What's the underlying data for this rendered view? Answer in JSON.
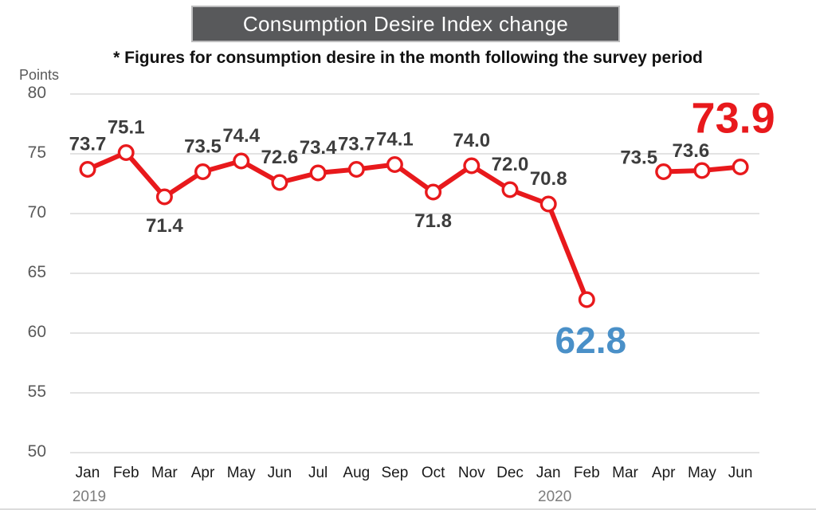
{
  "header": {
    "title": "Consumption Desire Index change",
    "subtitle": "* Figures for consumption desire in the month following the survey period"
  },
  "chart_data": {
    "type": "line",
    "title": "Consumption Desire Index change",
    "xlabel": "",
    "ylabel": "Points",
    "ylim": [
      50,
      80
    ],
    "yticks": [
      80,
      75,
      70,
      65,
      60,
      55,
      50
    ],
    "grid": "horizontal",
    "legend": "none",
    "categories": [
      "Jan",
      "Feb",
      "Mar",
      "Apr",
      "May",
      "Jun",
      "Jul",
      "Aug",
      "Sep",
      "Oct",
      "Nov",
      "Dec",
      "Jan",
      "Feb",
      "Mar",
      "Apr",
      "May",
      "Jun"
    ],
    "year_markers": [
      {
        "category_index": 0,
        "label": "2019"
      },
      {
        "category_index": 12,
        "label": "2020"
      }
    ],
    "series": [
      {
        "name": "Consumption Desire Index",
        "color": "#e8191c",
        "values": [
          73.7,
          75.1,
          71.4,
          73.5,
          74.4,
          72.6,
          73.4,
          73.7,
          74.1,
          71.8,
          74.0,
          72.0,
          70.8,
          62.8,
          null,
          73.5,
          73.6,
          73.9
        ]
      }
    ],
    "point_labels": [
      {
        "index": 0,
        "text": "73.7",
        "placement": "above"
      },
      {
        "index": 1,
        "text": "75.1",
        "placement": "above"
      },
      {
        "index": 2,
        "text": "71.4",
        "placement": "below"
      },
      {
        "index": 3,
        "text": "73.5",
        "placement": "above"
      },
      {
        "index": 4,
        "text": "74.4",
        "placement": "above"
      },
      {
        "index": 5,
        "text": "72.6",
        "placement": "above"
      },
      {
        "index": 6,
        "text": "73.4",
        "placement": "above"
      },
      {
        "index": 7,
        "text": "73.7",
        "placement": "above"
      },
      {
        "index": 8,
        "text": "74.1",
        "placement": "above"
      },
      {
        "index": 9,
        "text": "71.8",
        "placement": "below"
      },
      {
        "index": 10,
        "text": "74.0",
        "placement": "above"
      },
      {
        "index": 11,
        "text": "72.0",
        "placement": "above"
      },
      {
        "index": 12,
        "text": "70.8",
        "placement": "above"
      },
      {
        "index": 13,
        "text": "62.8",
        "placement": "below",
        "emphasis": "low",
        "color": "#4a90c8"
      },
      {
        "index": 15,
        "text": "73.5",
        "placement": "above"
      },
      {
        "index": 16,
        "text": "73.6",
        "placement": "above"
      },
      {
        "index": 17,
        "text": "73.9",
        "placement": "above",
        "emphasis": "high",
        "color": "#e8191c"
      }
    ]
  },
  "colors": {
    "line": "#e8191c",
    "marker_fill": "#ffffff",
    "banner_bg": "#58595b",
    "banner_text": "#ffffff",
    "gridline": "#d2d2d2",
    "axis_text": "#595959",
    "label_text": "#3d3d3d",
    "month_text": "#1a1a1a",
    "year_text": "#7d7d7d",
    "low_highlight": "#4a90c8",
    "high_highlight": "#e8191c"
  }
}
